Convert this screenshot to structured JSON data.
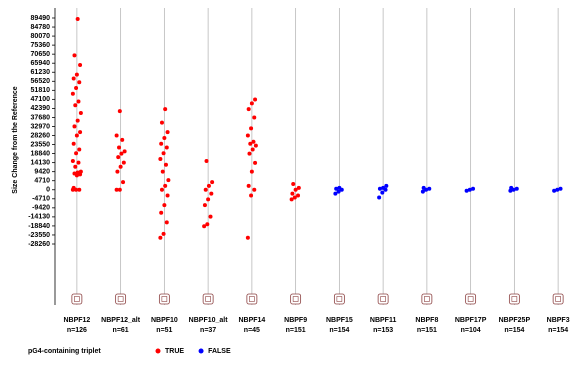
{
  "chart_data": {
    "type": "strip",
    "y_label": "Size Change from the Reference",
    "categories": [
      "NBPF12",
      "NBPF12_alt",
      "NBPF10",
      "NBPF10_alt",
      "NBPF14",
      "NBPF9",
      "NBPF15",
      "NBPF11",
      "NBPF8",
      "NBPF17P",
      "NBPF25P",
      "NBPF3"
    ],
    "n_labels": [
      "n=126",
      "n=61",
      "n=51",
      "n=37",
      "n=45",
      "n=151",
      "n=154",
      "n=153",
      "n=151",
      "n=104",
      "n=154",
      "n=154"
    ],
    "legend_title": "pG4-containing triplet",
    "series": [
      {
        "name": "TRUE",
        "color": "#ff0000",
        "values": [
          [
            0,
            0,
            0,
            1000,
            7500,
            8000,
            8500,
            9000,
            9420,
            12000,
            14130,
            15000,
            19000,
            21000,
            24000,
            28260,
            30000,
            33000,
            36000,
            40000,
            44000,
            46000,
            50000,
            53000,
            56000,
            58000,
            60000,
            65000,
            70000,
            89000
          ],
          [
            0,
            0,
            4000,
            9420,
            12000,
            14130,
            17000,
            18840,
            20000,
            22000,
            26000,
            28260,
            41000
          ],
          [
            -25000,
            -23000,
            -17000,
            -12000,
            -8000,
            -3000,
            0,
            2000,
            5000,
            9420,
            13000,
            16000,
            19000,
            22000,
            24000,
            27000,
            30000,
            35000,
            42000
          ],
          [
            -19000,
            -18000,
            -14000,
            -8000,
            -5000,
            -2000,
            0,
            2000,
            4000,
            15000
          ],
          [
            -25000,
            -3000,
            0,
            2000,
            9420,
            14000,
            18840,
            21000,
            23000,
            24000,
            25000,
            28260,
            32000,
            37680,
            42000,
            45000,
            47000
          ],
          [
            -5000,
            -4000,
            -3000,
            -2000,
            0,
            1000,
            3000
          ],
          [],
          [],
          [],
          [],
          [],
          []
        ]
      },
      {
        "name": "FALSE",
        "color": "#0000ff",
        "values": [
          [],
          [],
          [],
          [],
          [],
          [],
          [
            -2000,
            -1000,
            0,
            500,
            1000
          ],
          [
            -4000,
            -1500,
            0,
            500,
            1000,
            2000
          ],
          [
            -1000,
            0,
            500,
            1000
          ],
          [
            -500,
            0,
            500
          ],
          [
            -500,
            0,
            500,
            1000
          ],
          [
            -500,
            0,
            500
          ]
        ]
      }
    ],
    "ylim": [
      -60040,
      94700
    ],
    "yticks": [
      89490,
      84780,
      80070,
      75360,
      70650,
      65940,
      61230,
      56520,
      51810,
      47100,
      42390,
      37680,
      32970,
      28260,
      23550,
      18840,
      14130,
      9420,
      4710,
      0,
      -4710,
      -9420,
      -14130,
      -18840,
      -23550,
      -28260
    ],
    "grid": true
  }
}
